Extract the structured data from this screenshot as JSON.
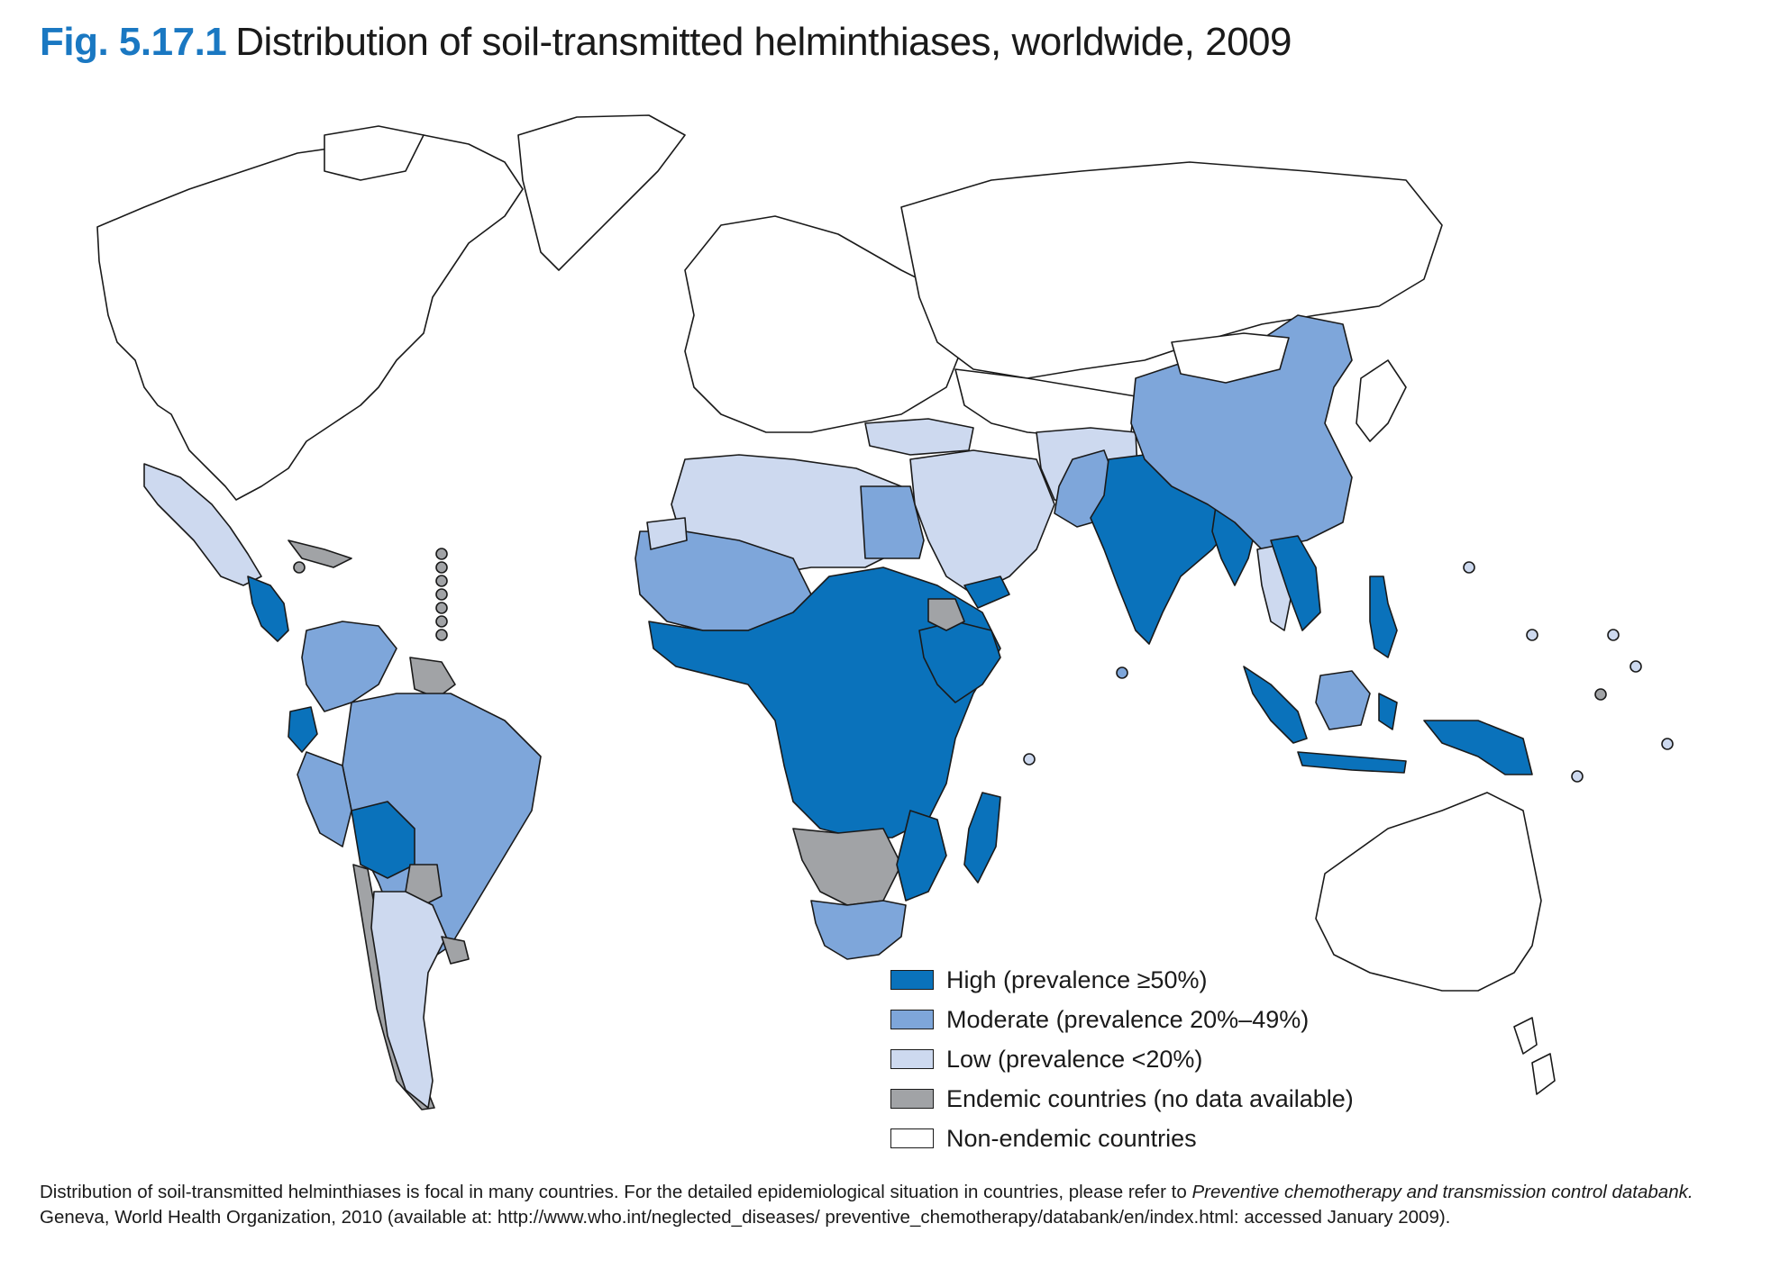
{
  "title": {
    "figure_number": "Fig. 5.17.1",
    "text": "Distribution of soil-transmitted helminthiases, worldwide, 2009"
  },
  "colors": {
    "high": "#0a72bb",
    "moderate": "#7ea6da",
    "low": "#cdd9ef",
    "endemic_no_data": "#a1a3a6",
    "non_endemic": "#ffffff",
    "title_accent": "#1a78c2"
  },
  "legend": [
    {
      "key": "high",
      "label": "High (prevalence ≥50%)"
    },
    {
      "key": "moderate",
      "label": "Moderate (prevalence 20%–49%)"
    },
    {
      "key": "low",
      "label": "Low (prevalence <20%)"
    },
    {
      "key": "endemic_no_data",
      "label": "Endemic countries (no data available)"
    },
    {
      "key": "non_endemic",
      "label": "Non-endemic countries"
    }
  ],
  "footnote": {
    "part1": "Distribution of soil-transmitted helminthiases is focal in many countries. For the detailed epidemiological situation in countries, please refer to ",
    "italic": "Preventive chemotherapy and transmission control databank.",
    "part2": "Geneva, World Health Organization, 2010 (available at: http://www.who.int/neglected_diseases/ preventive_chemotherapy/databank/en/index.html: accessed January 2009)."
  }
}
